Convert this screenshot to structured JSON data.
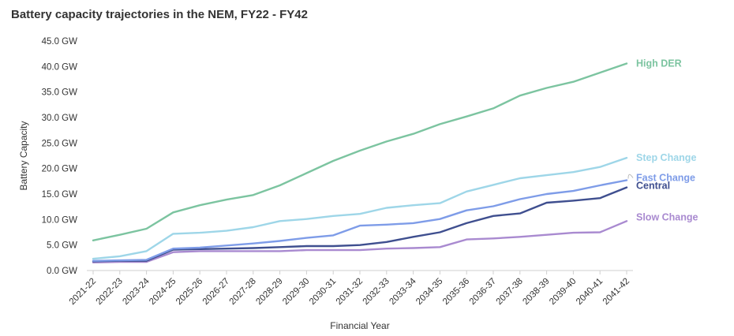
{
  "chart_data": {
    "type": "line",
    "title": "Battery capacity trajectories in the NEM, FY22 - FY42",
    "xlabel": "Financial Year",
    "ylabel": "Battery Capacity",
    "ylim": [
      0,
      45
    ],
    "yticks": [
      0,
      5,
      10,
      15,
      20,
      25,
      30,
      35,
      40,
      45
    ],
    "ytick_labels": [
      "0.0 GW",
      "5.0 GW",
      "10.0 GW",
      "15.0 GW",
      "20.0 GW",
      "25.0 GW",
      "30.0 GW",
      "35.0 GW",
      "40.0 GW",
      "45.0 GW"
    ],
    "categories": [
      "2021-22",
      "2022-23",
      "2023-24",
      "2024-25",
      "2025-26",
      "2026-27",
      "2027-28",
      "2028-29",
      "2029-30",
      "2030-31",
      "2031-32",
      "2032-33",
      "2033-34",
      "2034-35",
      "2035-36",
      "2036-37",
      "2037-38",
      "2038-39",
      "2039-40",
      "2040-41",
      "2041-42"
    ],
    "legend": "end-of-line labels",
    "grid": false,
    "series": [
      {
        "name": "High DER",
        "color": "#7cc4a0",
        "values": [
          5.9,
          7.0,
          8.2,
          11.4,
          12.8,
          13.9,
          14.8,
          16.7,
          19.1,
          21.5,
          23.5,
          25.3,
          26.8,
          28.7,
          30.2,
          31.8,
          34.3,
          35.8,
          37.0,
          38.8,
          40.6
        ]
      },
      {
        "name": "Step Change",
        "color": "#9ed6e8",
        "values": [
          2.3,
          2.8,
          3.8,
          7.2,
          7.4,
          7.8,
          8.5,
          9.7,
          10.1,
          10.7,
          11.1,
          12.3,
          12.8,
          13.2,
          15.5,
          16.8,
          18.1,
          18.7,
          19.3,
          20.3,
          22.1
        ]
      },
      {
        "name": "Fast Change",
        "color": "#7e9ce8",
        "values": [
          1.9,
          2.0,
          2.1,
          4.3,
          4.5,
          4.9,
          5.3,
          5.8,
          6.4,
          6.9,
          8.8,
          9.0,
          9.3,
          10.1,
          11.8,
          12.6,
          14.0,
          15.0,
          15.6,
          16.7,
          17.7
        ]
      },
      {
        "name": "Central",
        "color": "#3f4f8f",
        "values": [
          1.8,
          1.9,
          1.9,
          4.1,
          4.2,
          4.3,
          4.4,
          4.6,
          4.8,
          4.8,
          5.0,
          5.6,
          6.6,
          7.5,
          9.3,
          10.7,
          11.2,
          13.3,
          13.7,
          14.2,
          16.3
        ]
      },
      {
        "name": "Slow Change",
        "color": "#a98ad0",
        "values": [
          1.6,
          1.7,
          1.7,
          3.6,
          3.8,
          3.8,
          3.8,
          3.8,
          4.0,
          4.0,
          4.0,
          4.3,
          4.4,
          4.6,
          6.1,
          6.3,
          6.6,
          7.0,
          7.4,
          7.5,
          9.7
        ]
      }
    ]
  }
}
